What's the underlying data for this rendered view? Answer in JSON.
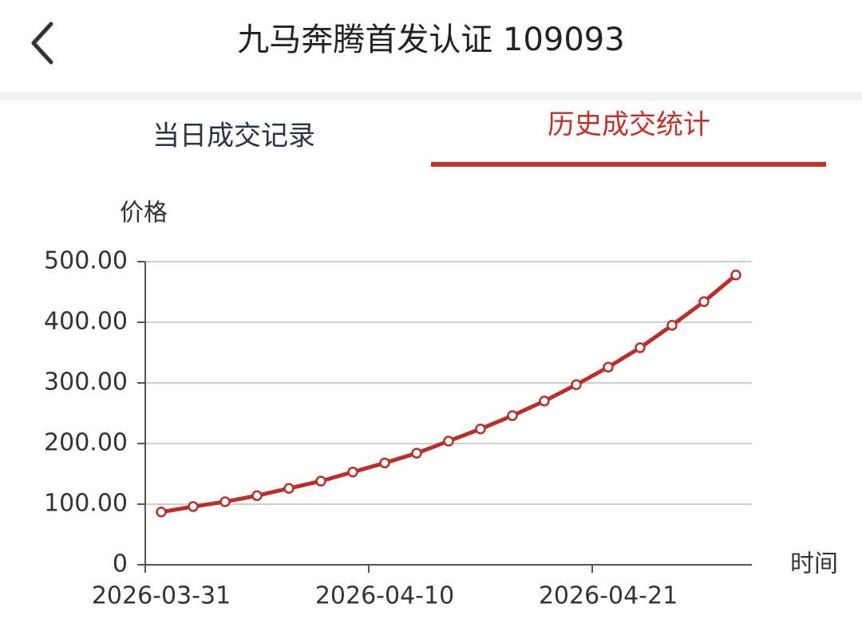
{
  "header": {
    "title": "九马奔腾首发认证 109093"
  },
  "tabs": [
    {
      "label": "当日成交记录",
      "active": false
    },
    {
      "label": "历史成交统计",
      "active": true
    }
  ],
  "chart_data": {
    "type": "line",
    "y_label": "价格",
    "x_label": "时间",
    "categories": [
      "2026-03-31",
      null,
      null,
      null,
      null,
      null,
      null,
      "2026-04-10",
      null,
      null,
      null,
      null,
      null,
      null,
      "2026-04-21",
      null,
      null,
      null,
      null
    ],
    "values": [
      87,
      96,
      104,
      114,
      126,
      138,
      153,
      168,
      184,
      204,
      224,
      246,
      270,
      297,
      326,
      358,
      395,
      434,
      478
    ],
    "color": "#b8302c",
    "ylim": [
      0,
      500
    ],
    "yticks": [
      0,
      {
        "value": 100,
        "label": "100.00"
      },
      {
        "value": 200,
        "label": "200.00"
      },
      {
        "value": 300,
        "label": "300.00"
      },
      {
        "value": 400,
        "label": "400.00"
      },
      {
        "value": 500,
        "label": "500.00"
      }
    ],
    "grid": true
  }
}
